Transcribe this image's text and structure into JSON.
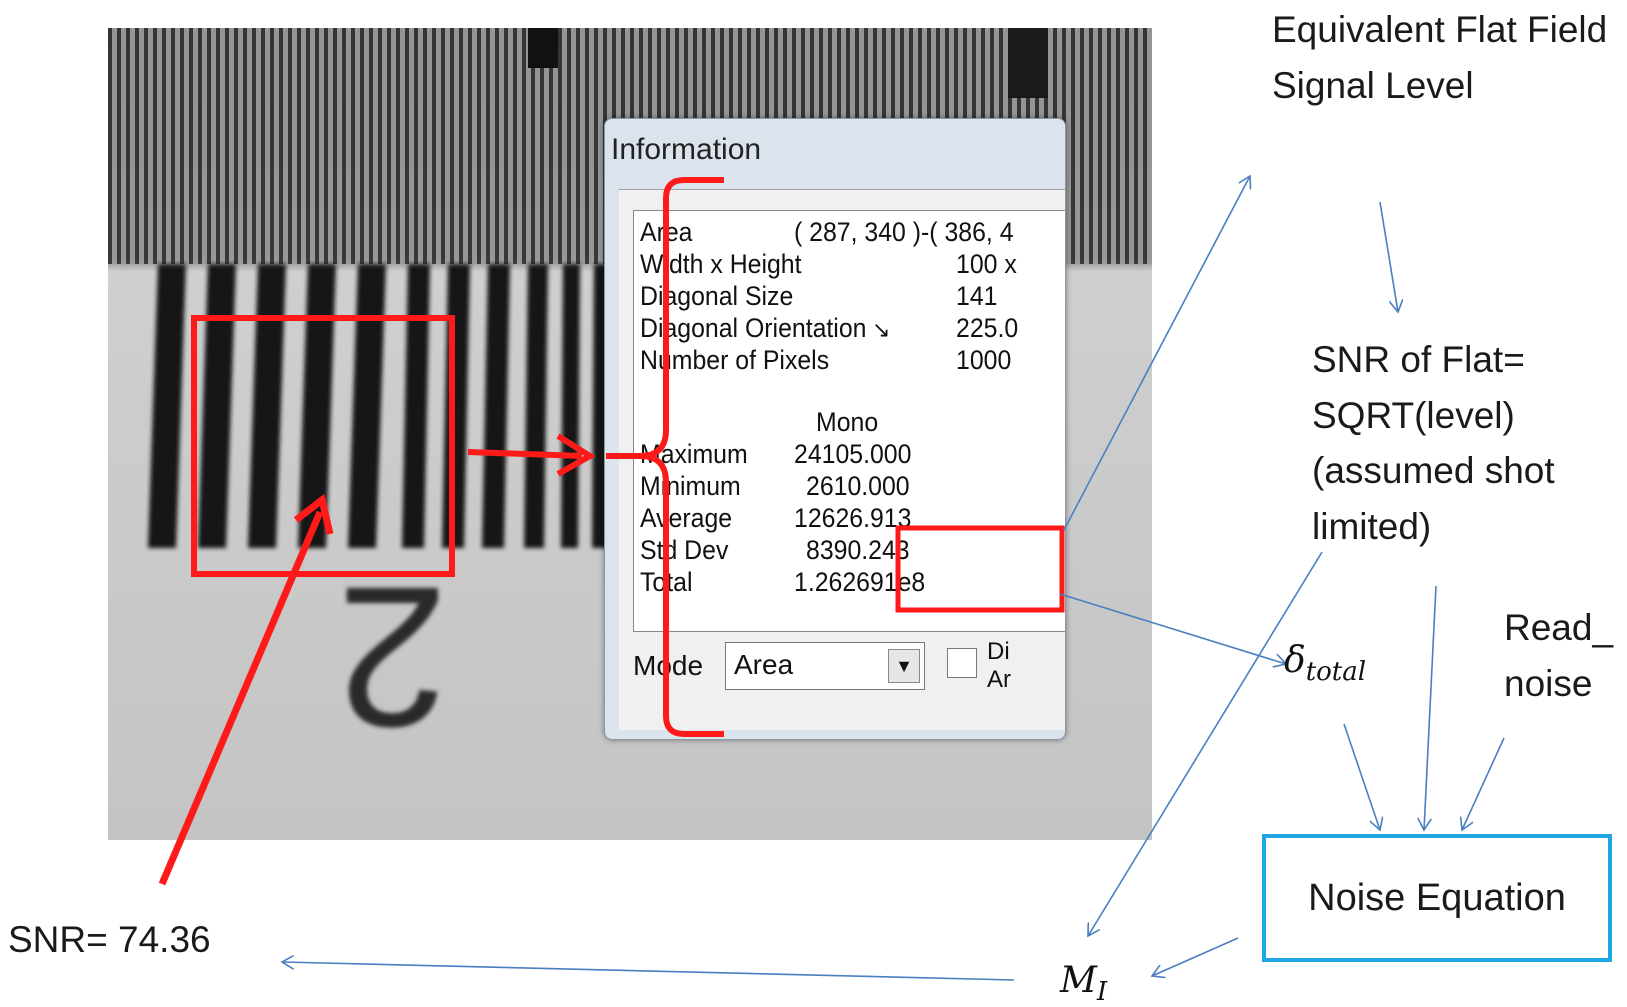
{
  "dialog": {
    "title": "Information",
    "rows": [
      {
        "label": "Area",
        "value": "( 287, 340 )-( 386, 4"
      },
      {
        "label": "Width x Height",
        "value": "100 x"
      },
      {
        "label": "Diagonal Size",
        "value": "141"
      },
      {
        "label": "Diagonal Orientation",
        "value": "225.0"
      },
      {
        "label": "Number of Pixels",
        "value": "1000"
      }
    ],
    "channel_header": "Mono",
    "stats": [
      {
        "label": "Maximum",
        "value": "24105.000"
      },
      {
        "label": "Minimum",
        "value": "2610.000"
      },
      {
        "label": "Average",
        "value": "12626.913"
      },
      {
        "label": "Std Dev",
        "value": "8390.243"
      },
      {
        "label": "Total",
        "value": "1.262691e8"
      }
    ],
    "mode_label": "Mode",
    "mode_value": "Area",
    "checkbox_label_1": "Di",
    "checkbox_label_2": "Ar"
  },
  "labels": {
    "flat_field": "Equivalent Flat Field Signal Level",
    "snr_flat": "SNR of Flat= SQRT(level) (assumed shot limited)",
    "read_noise": "Read_ noise",
    "delta_total_symbol": "δ",
    "delta_total_sub": "total",
    "mi_symbol": "M",
    "mi_sub": "I",
    "noise_equation": "Noise Equation",
    "snr_result": "SNR= 74.36"
  },
  "colors": {
    "highlight_red": "#ff1a1a",
    "arrow_blue": "#4a7fc0",
    "box_cyan": "#1ea7e0"
  }
}
